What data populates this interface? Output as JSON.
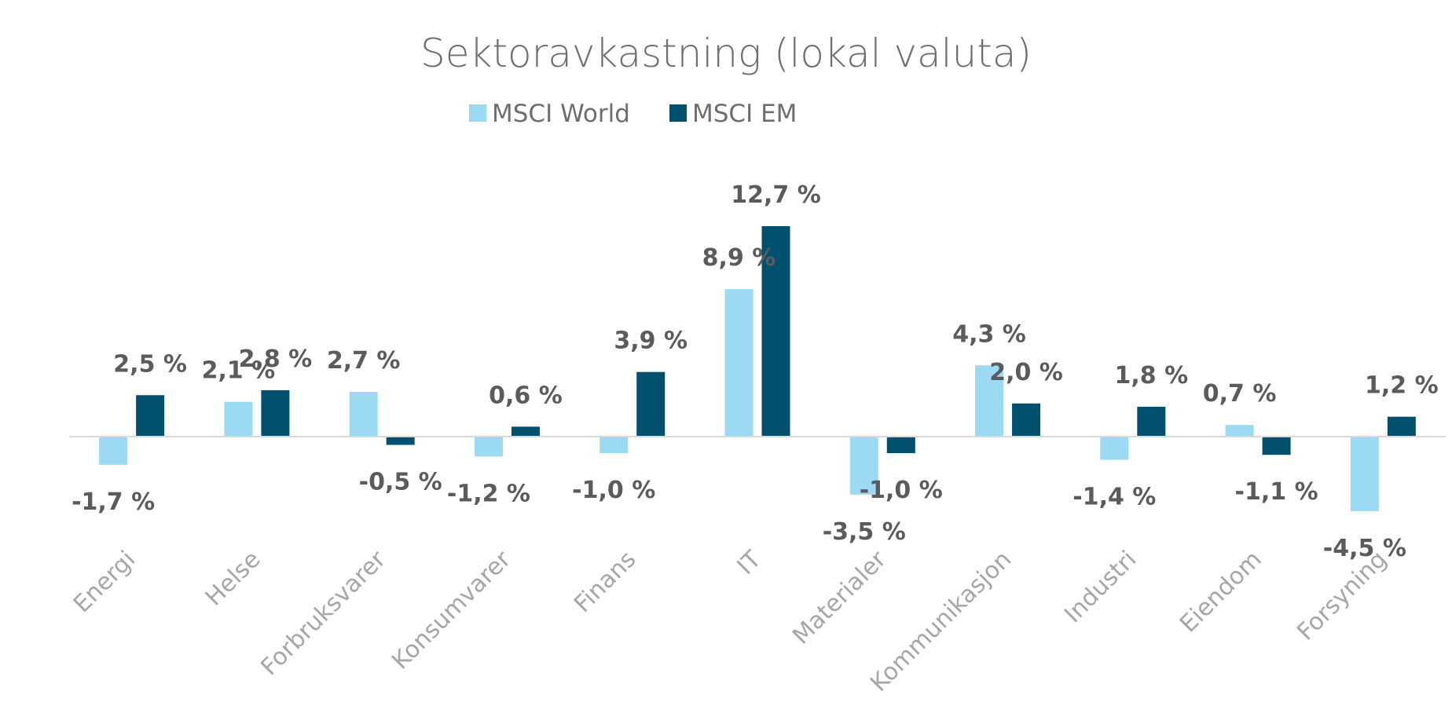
{
  "chart_data": {
    "type": "bar",
    "title": "Sektoravkastning (lokal valuta)",
    "categories": [
      "Energi",
      "Helse",
      "Forbruksvarer",
      "Konsumvarer",
      "Finans",
      "IT",
      "Materialer",
      "Kommunikasjon",
      "Industri",
      "Eiendom",
      "Forsyning"
    ],
    "series": [
      {
        "name": "MSCI World",
        "color": "#9cd9f2",
        "values": [
          -1.7,
          2.1,
          2.7,
          -1.2,
          -1.0,
          8.9,
          -3.5,
          4.3,
          -1.4,
          0.7,
          -4.5
        ],
        "labels": [
          "-1,7 %",
          "2,1 %",
          "2,7 %",
          "-1,2 %",
          "-1,0 %",
          "8,9 %",
          "-3,5 %",
          "4,3 %",
          "-1,4 %",
          "0,7 %",
          "-4,5 %"
        ]
      },
      {
        "name": "MSCI EM",
        "color": "#00506e",
        "values": [
          2.5,
          2.8,
          -0.5,
          0.6,
          3.9,
          12.7,
          -1.0,
          2.0,
          1.8,
          -1.1,
          1.2
        ],
        "labels": [
          "2,5 %",
          "2,8 %",
          "-0,5 %",
          "0,6 %",
          "3,9 %",
          "12,7 %",
          "-1,0 %",
          "2,0 %",
          "1,8 %",
          "-1,1 %",
          "1,2 %"
        ]
      }
    ],
    "xlabel": "",
    "ylabel": "",
    "ylim": [
      -6,
      14
    ],
    "grid": false,
    "legend": "top-center",
    "axis_color": "#d9d9d9"
  }
}
